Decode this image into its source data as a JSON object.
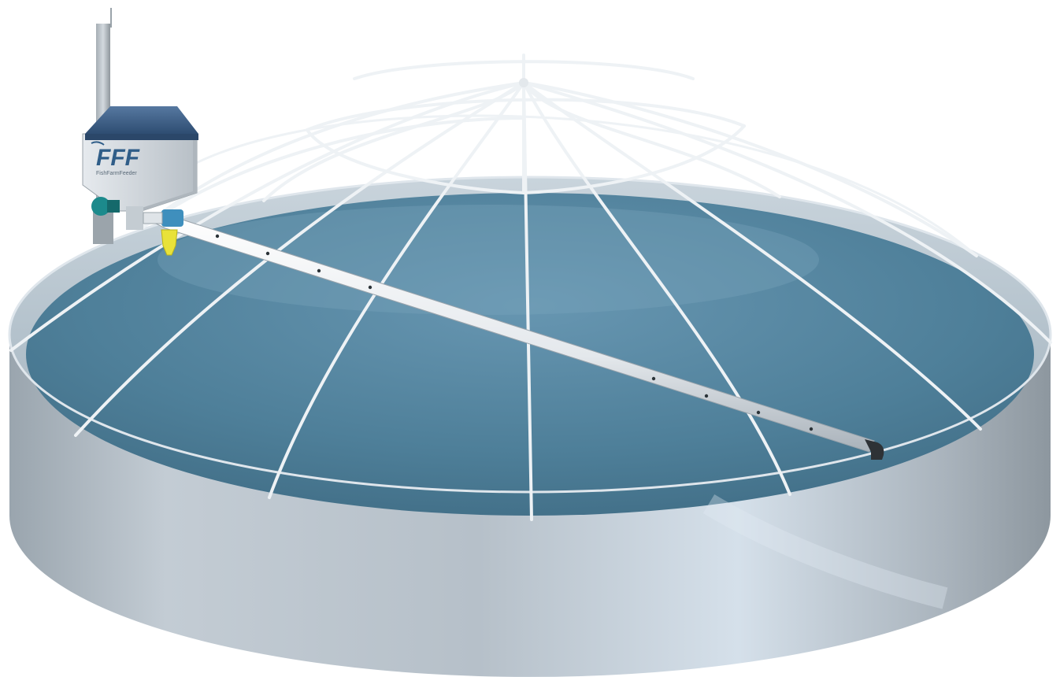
{
  "logo": {
    "text": "FFF",
    "subtext": "FishFarmFeeder"
  },
  "scene": {
    "description_tags": [
      "round-fish-tank",
      "dome-net-frame",
      "automatic-feeder",
      "feed-distribution-pipe"
    ],
    "colors": {
      "background": "#ffffff",
      "water": "#4f7f98",
      "tank_wall": "#b7c2cc",
      "dome_tubes": "#e9eef2",
      "feeder_lid": "#3e5f85",
      "feeder_body": "#cfd6dc",
      "valve_yellow": "#e8e23a",
      "motor_teal": "#1c8a8c"
    }
  }
}
